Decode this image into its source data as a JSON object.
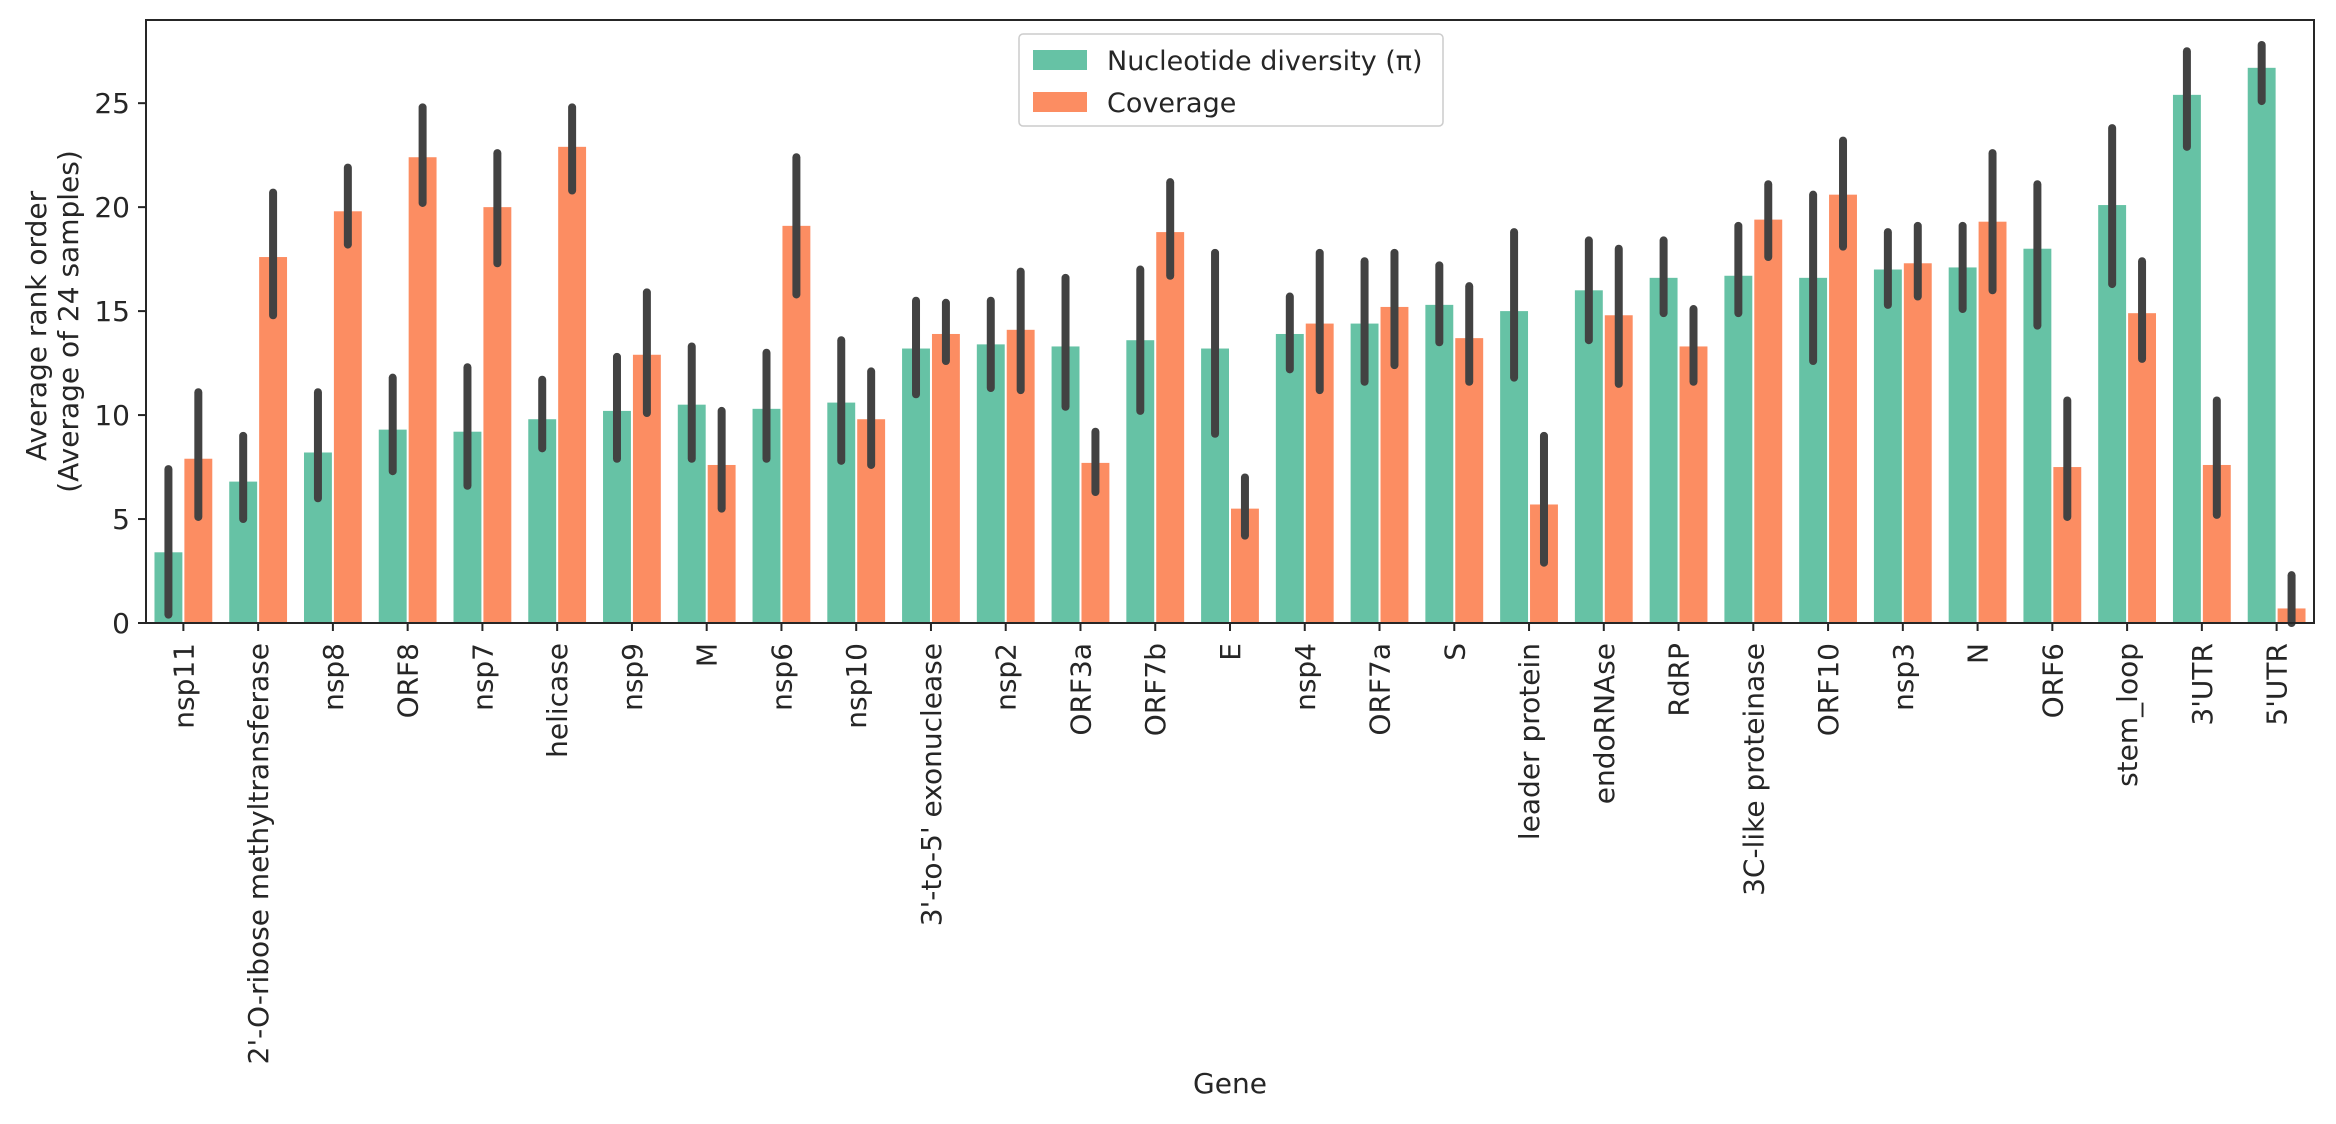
{
  "chart_data": {
    "type": "bar",
    "xlabel": "Gene",
    "ylabel": [
      "Average rank order",
      "(Average of 24 samples)"
    ],
    "ylim": [
      0,
      29
    ],
    "yticks": [
      0,
      5,
      10,
      15,
      20,
      25
    ],
    "grid": false,
    "legend_position": "top-center",
    "categories": [
      "nsp11",
      "2'-O-ribose methyltransferase",
      "nsp8",
      "ORF8",
      "nsp7",
      "helicase",
      "nsp9",
      "M",
      "nsp6",
      "nsp10",
      "3'-to-5' exonuclease",
      "nsp2",
      "ORF3a",
      "ORF7b",
      "E",
      "nsp4",
      "ORF7a",
      "S",
      "leader protein",
      "endoRNAse",
      "RdRP",
      "3C-like proteinase",
      "ORF10",
      "nsp3",
      "N",
      "ORF6",
      "stem_loop",
      "3'UTR",
      "5'UTR"
    ],
    "series": [
      {
        "name": "Nucleotide diversity (π)",
        "color": "#66c2a5",
        "values": [
          3.4,
          6.8,
          8.2,
          9.3,
          9.2,
          9.8,
          10.2,
          10.5,
          10.3,
          10.6,
          13.2,
          13.4,
          13.3,
          13.6,
          13.2,
          13.9,
          14.4,
          15.3,
          15.0,
          16.0,
          16.6,
          16.7,
          16.6,
          17.0,
          17.1,
          18.0,
          20.1,
          25.4,
          26.7
        ],
        "ci": [
          [
            0.4,
            7.4
          ],
          [
            5.0,
            9.0
          ],
          [
            6.0,
            11.1
          ],
          [
            7.3,
            11.8
          ],
          [
            6.6,
            12.3
          ],
          [
            8.4,
            11.7
          ],
          [
            7.9,
            12.8
          ],
          [
            7.9,
            13.3
          ],
          [
            7.9,
            13.0
          ],
          [
            7.8,
            13.6
          ],
          [
            11.0,
            15.5
          ],
          [
            11.3,
            15.5
          ],
          [
            10.4,
            16.6
          ],
          [
            10.2,
            17.0
          ],
          [
            9.1,
            17.8
          ],
          [
            12.2,
            15.7
          ],
          [
            11.6,
            17.4
          ],
          [
            13.5,
            17.2
          ],
          [
            11.8,
            18.8
          ],
          [
            13.6,
            18.4
          ],
          [
            14.9,
            18.4
          ],
          [
            14.9,
            19.1
          ],
          [
            12.6,
            20.6
          ],
          [
            15.3,
            18.8
          ],
          [
            15.1,
            19.1
          ],
          [
            14.3,
            21.1
          ],
          [
            16.3,
            23.8
          ],
          [
            22.9,
            27.5
          ],
          [
            25.1,
            27.8
          ]
        ]
      },
      {
        "name": "Coverage",
        "color": "#fc8d62",
        "values": [
          7.9,
          17.6,
          19.8,
          22.4,
          20.0,
          22.9,
          12.9,
          7.6,
          19.1,
          9.8,
          13.9,
          14.1,
          7.7,
          18.8,
          5.5,
          14.4,
          15.2,
          13.7,
          5.7,
          14.8,
          13.3,
          19.4,
          20.6,
          17.3,
          19.3,
          7.5,
          14.9,
          7.6,
          0.7
        ],
        "ci": [
          [
            5.1,
            11.1
          ],
          [
            14.8,
            20.7
          ],
          [
            18.2,
            21.9
          ],
          [
            20.2,
            24.8
          ],
          [
            17.3,
            22.6
          ],
          [
            20.8,
            24.8
          ],
          [
            10.1,
            15.9
          ],
          [
            5.5,
            10.2
          ],
          [
            15.8,
            22.4
          ],
          [
            7.6,
            12.1
          ],
          [
            12.6,
            15.4
          ],
          [
            11.2,
            16.9
          ],
          [
            6.3,
            9.2
          ],
          [
            16.7,
            21.2
          ],
          [
            4.2,
            7.0
          ],
          [
            11.2,
            17.8
          ],
          [
            12.4,
            17.8
          ],
          [
            11.6,
            16.2
          ],
          [
            2.9,
            9.0
          ],
          [
            11.5,
            18.0
          ],
          [
            11.6,
            15.1
          ],
          [
            17.6,
            21.1
          ],
          [
            18.1,
            23.2
          ],
          [
            15.7,
            19.1
          ],
          [
            16.0,
            22.6
          ],
          [
            5.1,
            10.7
          ],
          [
            12.7,
            17.4
          ],
          [
            5.2,
            10.7
          ],
          [
            0.0,
            2.3
          ]
        ]
      }
    ]
  }
}
